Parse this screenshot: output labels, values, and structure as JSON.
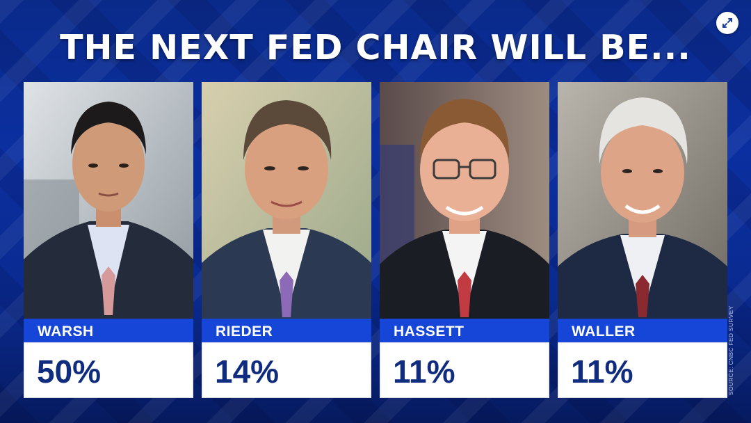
{
  "title": "THE NEXT FED CHAIR WILL BE...",
  "source": "SOURCE: CNBC FED SURVEY",
  "icons": {
    "expand": "expand-arrows-icon"
  },
  "colors": {
    "background": "#0b2fa0",
    "name_bar": "#1646d8",
    "percent_text": "#102c7e"
  },
  "chart_data": {
    "type": "table",
    "title": "THE NEXT FED CHAIR WILL BE...",
    "categories": [
      "WARSH",
      "RIEDER",
      "HASSETT",
      "WALLER"
    ],
    "values": [
      50,
      14,
      11,
      11
    ],
    "labels": [
      "50%",
      "14%",
      "11%",
      "11%"
    ]
  },
  "candidates": [
    {
      "name": "WARSH",
      "percent": "50%"
    },
    {
      "name": "RIEDER",
      "percent": "14%"
    },
    {
      "name": "HASSETT",
      "percent": "11%"
    },
    {
      "name": "WALLER",
      "percent": "11%"
    }
  ]
}
